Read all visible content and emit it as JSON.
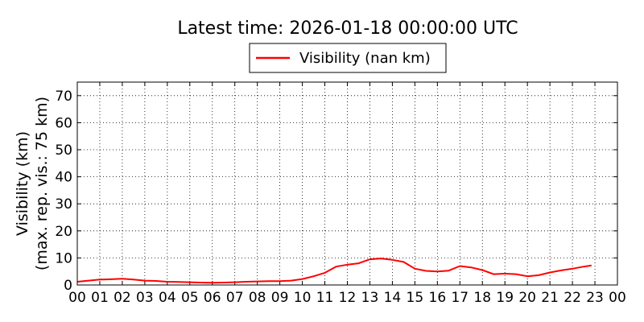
{
  "chart_data": {
    "type": "line",
    "title": "Latest time: 2026-01-18 00:00:00 UTC",
    "ylabel": "Visibility (km)",
    "ylabel2": "(max. rep. vis.: 75 km)",
    "xlabel": "",
    "xlim": [
      0,
      24
    ],
    "ylim": [
      0,
      75
    ],
    "xticks": [
      "00",
      "01",
      "02",
      "03",
      "04",
      "05",
      "06",
      "07",
      "08",
      "09",
      "10",
      "11",
      "12",
      "13",
      "14",
      "15",
      "16",
      "17",
      "18",
      "19",
      "20",
      "21",
      "22",
      "23",
      "00"
    ],
    "yticks": [
      0,
      10,
      20,
      30,
      40,
      50,
      60,
      70
    ],
    "grid": true,
    "legend": "top-center",
    "series": [
      {
        "name": "Visibility (nan km)",
        "color": "#ff0000",
        "x": [
          0,
          0.5,
          1,
          1.5,
          2,
          2.5,
          3,
          3.5,
          4,
          4.5,
          5,
          5.5,
          6,
          6.5,
          7,
          7.5,
          8,
          8.5,
          9,
          9.5,
          10,
          10.5,
          11,
          11.5,
          12,
          12.5,
          13,
          13.5,
          14,
          14.5,
          15,
          15.5,
          16,
          16.5,
          17,
          17.5,
          18,
          18.5,
          19,
          19.5,
          20,
          20.5,
          21,
          21.5,
          22,
          22.5,
          22.85
        ],
        "y": [
          1.2,
          1.6,
          2.0,
          2.1,
          2.3,
          2.0,
          1.6,
          1.5,
          1.2,
          1.1,
          1.0,
          0.9,
          0.8,
          0.9,
          1.0,
          1.2,
          1.3,
          1.4,
          1.4,
          1.6,
          2.2,
          3.2,
          4.5,
          6.8,
          7.5,
          8.0,
          9.5,
          9.8,
          9.3,
          8.5,
          6.0,
          5.2,
          5.0,
          5.3,
          7.0,
          6.5,
          5.5,
          4.0,
          4.2,
          4.0,
          3.2,
          3.6,
          4.6,
          5.4,
          6.0,
          6.8,
          7.2
        ]
      }
    ]
  }
}
